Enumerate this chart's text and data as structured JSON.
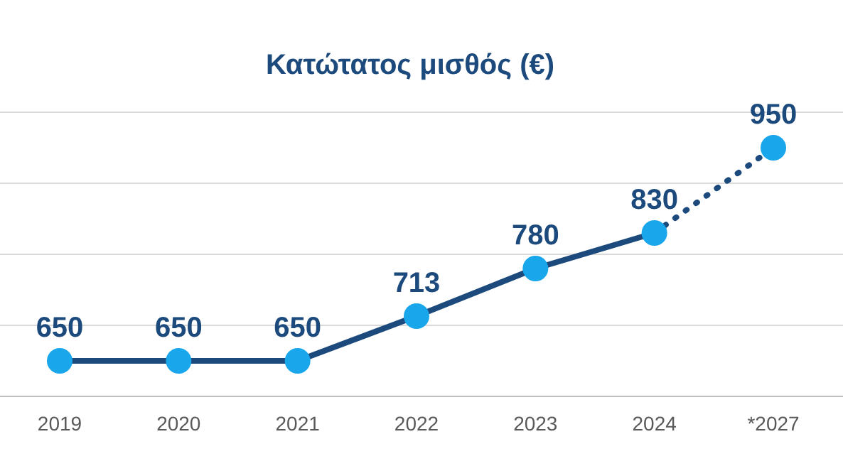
{
  "chart_data": {
    "type": "line",
    "title": "Κατώτατος μισθός (€)",
    "categories": [
      "2019",
      "2020",
      "2021",
      "2022",
      "2023",
      "2024",
      "*2027"
    ],
    "series": [
      {
        "color": "#1c4a7c",
        "marker": "none",
        "line_style": "solid",
        "values": [
          650,
          650,
          650,
          713,
          780,
          830,
          null
        ]
      },
      {
        "color": "#1c4a7c",
        "marker": "none",
        "line_style": "dotted",
        "values": [
          null,
          null,
          null,
          null,
          null,
          830,
          950
        ]
      },
      {
        "type": "scatter",
        "color": "#1aa6ea",
        "marker": "circle",
        "values": [
          650,
          650,
          650,
          713,
          780,
          830,
          950
        ],
        "value_labels": [
          "650",
          "650",
          "650",
          "713",
          "780",
          "830",
          "950"
        ]
      }
    ],
    "ylim": [
      600,
      1000
    ],
    "yticks": [
      {
        "value": 600,
        "label": null
      },
      {
        "value": 700,
        "label": null
      },
      {
        "value": 800,
        "label": null
      },
      {
        "value": 900,
        "label": null
      },
      {
        "value": 1000,
        "label": null
      }
    ],
    "tick_labels": "x",
    "grid": "y"
  }
}
